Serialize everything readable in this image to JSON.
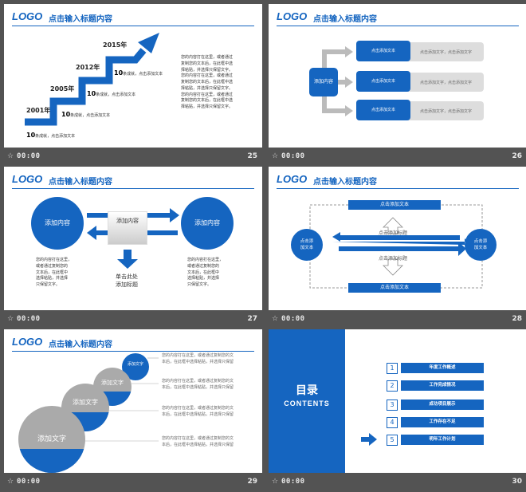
{
  "colors": {
    "accent": "#1565c0",
    "background": "#535353",
    "slide": "#ffffff"
  },
  "footer_time": "00:00",
  "slides": [
    {
      "num": "25",
      "logo": "LOGO",
      "title": "点击输入标题内容",
      "steps": [
        {
          "year": "2001年",
          "big": "10",
          "small": "条成就，点击添加文本"
        },
        {
          "year": "2005年",
          "big": "10",
          "small": "条成就，点击添加文本"
        },
        {
          "year": "2012年",
          "big": "10",
          "small": "条成就，点击添加文本"
        },
        {
          "year": "2015年",
          "big": "10",
          "small": "条成就，点击添加文本"
        }
      ],
      "para": [
        "您的内容打在这里，或者通过",
        "复制您的文本后，在此框中选",
        "择粘贴，并选择只保留文字。",
        "您的内容打在这里，或者通过",
        "复制您的文本后，在此框中选",
        "择粘贴，并选择只保留文字。",
        "您的内容打在这里，或者通过",
        "复制您的文本后，在此框中选",
        "择粘贴，并选择只保留文字。"
      ]
    },
    {
      "num": "26",
      "center": "添加内容",
      "rows": [
        {
          "box": "点击添加文本",
          "desc": "点击添加文字，点击添加文字"
        },
        {
          "box": "点击添加文本",
          "desc": "点击添加文字，点击添加文字"
        },
        {
          "box": "点击添加文本",
          "desc": "点击添加文字，点击添加文字"
        }
      ]
    },
    {
      "num": "27",
      "left_circle": "添加内容",
      "right_circle": "添加内容",
      "middle": "添加内容",
      "below": [
        "单击此处",
        "添加标题"
      ],
      "left_text": [
        "您的内容打在这里，",
        "或者通过复制您的",
        "文本后，在此框中",
        "选择粘贴，并选择",
        "只保留文字。"
      ],
      "right_text": [
        "您的内容打在这里，",
        "或者通过复制您的",
        "文本后，在此框中",
        "选择粘贴，并选择",
        "只保留文字。"
      ]
    },
    {
      "num": "28",
      "top_bar": "点击添加文本",
      "bottom_bar": "点击添加文本",
      "top_label": "点击添加标题",
      "bottom_label": "点击添加标题",
      "left_circle": [
        "点击添",
        "加文本"
      ],
      "right_circle": [
        "点击添",
        "加文本"
      ]
    },
    {
      "num": "29",
      "circles": [
        "添加文字",
        "添加文字",
        "添加文字",
        "添加文字"
      ],
      "text": [
        "您的内容打在这里，或者通过复制您的文",
        "本后，在此框中选择粘贴，并选择只保留"
      ]
    },
    {
      "num": "30",
      "title": "目录",
      "subtitle": "CONTENTS",
      "items": [
        {
          "n": "1",
          "label": "年度工作概述"
        },
        {
          "n": "2",
          "label": "工作完成情况"
        },
        {
          "n": "3",
          "label": "成功项目展示"
        },
        {
          "n": "4",
          "label": "工作存在不足"
        },
        {
          "n": "5",
          "label": "明年工作计划"
        }
      ]
    }
  ]
}
